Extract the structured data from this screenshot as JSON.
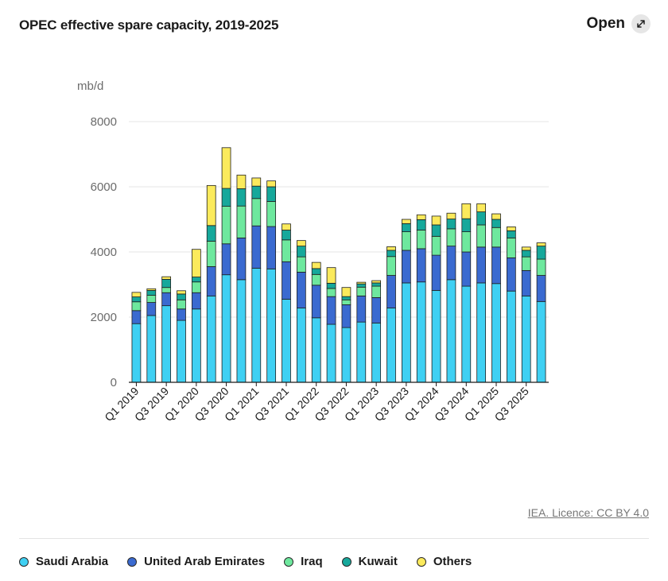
{
  "header": {
    "title": "OPEC effective spare capacity, 2019-2025",
    "open_label": "Open"
  },
  "source": "IEA. Licence: CC BY 4.0",
  "colors": {
    "Saudi Arabia": "#3fd0f3",
    "United Arab Emirates": "#3a6ad0",
    "Iraq": "#6ee89e",
    "Kuwait": "#16a89b",
    "Others": "#fbea5c"
  },
  "chart_data": {
    "type": "bar",
    "stacked": true,
    "ylabel": "mb/d",
    "ylim": [
      0,
      8000
    ],
    "yticks": [
      0,
      2000,
      4000,
      6000,
      8000
    ],
    "grid": true,
    "legend": "bottom",
    "categories": [
      "Q1 2019",
      "Q2 2019",
      "Q3 2019",
      "Q4 2019",
      "Q1 2020",
      "Q2 2020",
      "Q3 2020",
      "Q4 2020",
      "Q1 2021",
      "Q2 2021",
      "Q3 2021",
      "Q4 2021",
      "Q1 2022",
      "Q2 2022",
      "Q3 2022",
      "Q4 2022",
      "Q1 2023",
      "Q2 2023",
      "Q3 2023",
      "Q4 2023",
      "Q1 2024",
      "Q2 2024",
      "Q3 2024",
      "Q4 2024",
      "Q1 2025",
      "Q2 2025",
      "Q3 2025",
      "Q4 2025"
    ],
    "xtick_labels": [
      "Q1 2019",
      "Q3 2019",
      "Q1 2020",
      "Q3 2020",
      "Q1 2021",
      "Q3 2021",
      "Q1 2022",
      "Q3 2022",
      "Q1 2023",
      "Q3 2023",
      "Q1 2024",
      "Q3 2024",
      "Q1 2025",
      "Q3 2025"
    ],
    "series": [
      {
        "name": "Saudi Arabia",
        "values": [
          1800,
          2050,
          2350,
          1900,
          2250,
          2650,
          3300,
          3150,
          3500,
          3480,
          2550,
          2280,
          1980,
          1780,
          1680,
          1850,
          1820,
          2280,
          3050,
          3080,
          2820,
          3150,
          2950,
          3050,
          3030,
          2800,
          2650,
          2480
        ]
      },
      {
        "name": "United Arab Emirates",
        "values": [
          400,
          400,
          400,
          350,
          500,
          900,
          950,
          1280,
          1300,
          1300,
          1150,
          1100,
          1000,
          850,
          700,
          800,
          780,
          1000,
          1000,
          1020,
          1080,
          1030,
          1050,
          1100,
          1120,
          1020,
          780,
          800
        ]
      },
      {
        "name": "Iraq",
        "values": [
          270,
          220,
          160,
          280,
          330,
          780,
          1150,
          980,
          840,
          770,
          670,
          470,
          330,
          250,
          150,
          270,
          350,
          580,
          570,
          570,
          580,
          530,
          620,
          680,
          600,
          610,
          420,
          500
        ]
      },
      {
        "name": "Kuwait",
        "values": [
          150,
          150,
          250,
          180,
          150,
          480,
          550,
          530,
          380,
          450,
          300,
          330,
          180,
          160,
          100,
          100,
          100,
          190,
          250,
          320,
          350,
          300,
          400,
          400,
          250,
          220,
          200,
          400
        ]
      },
      {
        "name": "Others",
        "values": [
          140,
          50,
          80,
          100,
          850,
          1230,
          1250,
          420,
          250,
          180,
          190,
          170,
          190,
          480,
          280,
          50,
          70,
          110,
          130,
          150,
          270,
          180,
          460,
          250,
          170,
          120,
          100,
          100
        ]
      }
    ]
  }
}
